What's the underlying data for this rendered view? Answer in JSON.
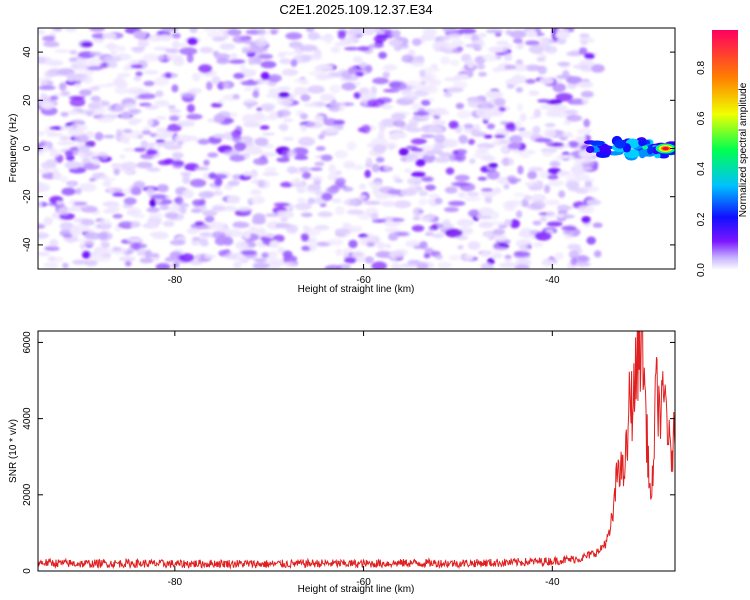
{
  "chart_data": [
    {
      "type": "heatmap",
      "title": "C2E1.2025.109.12.37.E34",
      "xlabel": "Height of straight line (km)",
      "ylabel": "Frequency (Hz)",
      "xlim": [
        -94.5,
        -27
      ],
      "ylim": [
        -50,
        50
      ],
      "xticks": [
        -80,
        -60,
        -40
      ],
      "yticks": [
        -40,
        -20,
        0,
        20,
        40
      ],
      "colorbar": {
        "label": "Normalized spectral amplitude",
        "range": [
          0,
          0.95
        ],
        "ticks": [
          0.0,
          0.2,
          0.4,
          0.6,
          0.8
        ],
        "colormap": [
          "#ffffff",
          "#b090ff",
          "#7b16ff",
          "#1010ff",
          "#00c0ff",
          "#00ff50",
          "#f0ff00",
          "#ff8000",
          "#ff0060"
        ]
      },
      "features": {
        "noise_background": {
          "x_range": [
            -94.5,
            -36
          ],
          "freq_range": [
            -50,
            50
          ],
          "amplitude_range": [
            0.0,
            0.15
          ]
        },
        "signal_band": {
          "x_range": [
            -36,
            -27
          ],
          "freq_center": 0,
          "freq_halfwidth": 3,
          "peak_x": -28,
          "peak_amplitude": 0.95
        }
      }
    },
    {
      "type": "line",
      "xlabel": "Height of straight line (km)",
      "ylabel": "SNR (10 * v/v)",
      "xlim": [
        -94.5,
        -27
      ],
      "ylim": [
        0,
        6300
      ],
      "xticks": [
        -80,
        -60,
        -40
      ],
      "yticks": [
        0,
        2000,
        4000,
        6000
      ],
      "color": "#e02020",
      "series": [
        {
          "x": [
            -94.5,
            -90,
            -85,
            -80,
            -75,
            -70,
            -65,
            -60,
            -55,
            -50,
            -45,
            -40,
            -37,
            -35,
            -34,
            -33.5,
            -33,
            -32.5,
            -32,
            -31.8,
            -31.5,
            -31,
            -30.5,
            -30.2,
            -30,
            -29.5,
            -29,
            -28.5,
            -28,
            -27.5,
            -27
          ],
          "y": [
            220,
            190,
            200,
            185,
            195,
            180,
            200,
            190,
            210,
            200,
            220,
            260,
            330,
            520,
            900,
            1600,
            2900,
            2500,
            3400,
            4700,
            4300,
            5500,
            6250,
            4800,
            3600,
            1600,
            4800,
            4100,
            4600,
            2900,
            3600
          ]
        }
      ]
    }
  ]
}
